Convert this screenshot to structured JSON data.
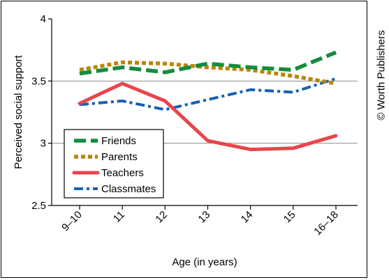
{
  "credit": "© Worth Publishers",
  "chart_data": {
    "type": "line",
    "xlabel": "Age (in years)",
    "ylabel": "Perceived social support",
    "categories": [
      "9–10",
      "11",
      "12",
      "13",
      "14",
      "15",
      "16–18"
    ],
    "ylim": [
      2.5,
      4
    ],
    "yticks": [
      "4",
      "3.5",
      "3",
      "2.5"
    ],
    "ytick_values": [
      4,
      3.5,
      3,
      2.5
    ],
    "gridlines": [
      3.5,
      3
    ],
    "legend_position": "bottom-left",
    "series": [
      {
        "name": "Friends",
        "values": [
          3.56,
          3.61,
          3.57,
          3.64,
          3.61,
          3.59,
          3.73
        ],
        "color": "#138c3c",
        "style": "dashed"
      },
      {
        "name": "Parents",
        "values": [
          3.59,
          3.65,
          3.64,
          3.61,
          3.59,
          3.54,
          3.48
        ],
        "color": "#b8860b",
        "style": "dotted"
      },
      {
        "name": "Teachers",
        "values": [
          3.32,
          3.48,
          3.34,
          3.02,
          2.95,
          2.96,
          3.06
        ],
        "color": "#e8454c",
        "style": "solid"
      },
      {
        "name": "Classmates",
        "values": [
          3.31,
          3.34,
          3.27,
          3.35,
          3.43,
          3.41,
          3.52
        ],
        "color": "#1660b5",
        "style": "dashdot"
      }
    ]
  }
}
